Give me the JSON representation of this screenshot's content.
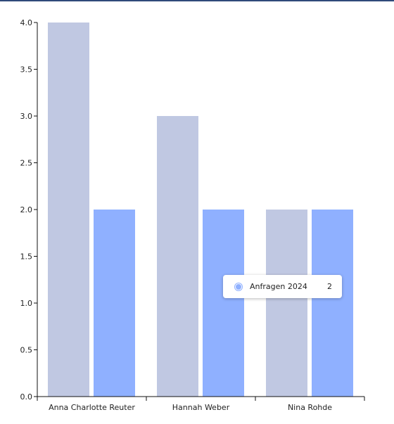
{
  "colors": {
    "top_rule": "#2F4A7A",
    "series_a": "#C0C8E2",
    "series_b": "#8FB0FF",
    "axis": "#111111"
  },
  "chart_data": {
    "type": "bar",
    "categories": [
      "Anna Charlotte Reuter",
      "Hannah Weber",
      "Nina Rohde"
    ],
    "series": [
      {
        "values": [
          4,
          3,
          2
        ]
      },
      {
        "name": "Anfragen 2024",
        "values": [
          2,
          2,
          2
        ]
      }
    ],
    "ylim": [
      0,
      4
    ],
    "yticks": [
      "0.0",
      "0.5",
      "1.0",
      "1.5",
      "2.0",
      "2.5",
      "3.0",
      "3.5",
      "4.0"
    ],
    "xlabel": "",
    "ylabel": "",
    "grid": false,
    "legend": "none"
  },
  "tooltip": {
    "series": "Anfragen 2024",
    "value": "2"
  }
}
